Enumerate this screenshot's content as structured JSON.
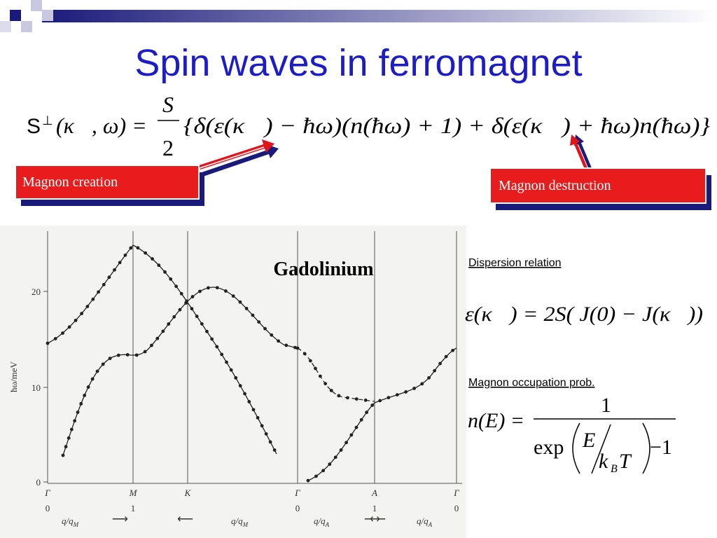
{
  "title": "Spin waves in ferromagnet",
  "equation": {
    "lhs_symbol": "S",
    "lhs_super": "⊥",
    "lhs_args": "(κ⃗, ω) =",
    "numerator": "S",
    "denominator": "2",
    "rhs": "{δ(ε(κ⃗) − ħω)(n(ħω) + 1) + δ(ε(κ⃗) + ħω)n(ħω)}"
  },
  "callouts": [
    "Magnon creation",
    "Magnon destruction"
  ],
  "figure": {
    "title": "Gadolinium",
    "y_label": "ħω/meV",
    "y_ticks": [
      "0",
      "10",
      "20"
    ],
    "x_points": [
      "Γ",
      "M",
      "K",
      "Γ",
      "A",
      "Γ"
    ],
    "x_values": [
      "0",
      "1",
      "0",
      "1",
      "0"
    ],
    "x_scales": [
      {
        "text": "q/q",
        "sub": "M",
        "arrow": "⟶"
      },
      {
        "text": "q/q",
        "sub": "M",
        "arrow": "⟵"
      },
      {
        "text": "q/q",
        "sub": "A",
        "arrow": "⟶"
      },
      {
        "text": "q/q",
        "sub": "A",
        "arrow": "⟵"
      }
    ]
  },
  "dispersion": {
    "heading": "Dispersion relation",
    "formula": "ε(κ⃗) = 2S( J(0) − J(κ⃗))"
  },
  "occupation": {
    "heading": "Magnon occupation prob.",
    "lhs": "n(E) =",
    "numerator": "1",
    "exp": "exp",
    "E": "E",
    "k": "k",
    "B": "B",
    "T": "T",
    "minus_one": "−1"
  }
}
